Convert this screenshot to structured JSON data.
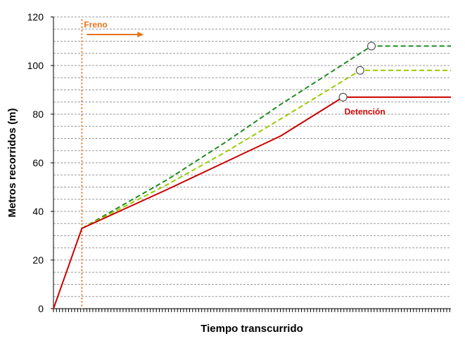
{
  "chart_data": {
    "type": "line",
    "title": "",
    "xlabel": "Tiempo transcurrido",
    "ylabel": "Metros recorridos (m)",
    "ylim": [
      0,
      120
    ],
    "xlim": [
      0,
      14
    ],
    "yticks": [
      0,
      20,
      40,
      60,
      80,
      100,
      120
    ],
    "grid": "horizontal dashed",
    "legend": "none",
    "series": [
      {
        "color": "#CC0000",
        "style": "solid",
        "points": [
          [
            0,
            0
          ],
          [
            1,
            33
          ],
          [
            2.5,
            41
          ],
          [
            4,
            49
          ],
          [
            6,
            60
          ],
          [
            8,
            71
          ],
          [
            10.2,
            87
          ],
          [
            14,
            87
          ]
        ],
        "end_marker": [
          10.2,
          87
        ]
      },
      {
        "color": "#99CC00",
        "style": "dashed",
        "points": [
          [
            1,
            33
          ],
          [
            2.5,
            42
          ],
          [
            4,
            51
          ],
          [
            6,
            64
          ],
          [
            8,
            78
          ],
          [
            10.8,
            98
          ],
          [
            14,
            98
          ]
        ],
        "end_marker": [
          10.8,
          98
        ]
      },
      {
        "color": "#228B22",
        "style": "dashed",
        "points": [
          [
            1,
            33
          ],
          [
            2.5,
            43
          ],
          [
            4,
            53
          ],
          [
            6,
            68
          ],
          [
            8,
            84
          ],
          [
            11.2,
            108
          ],
          [
            14,
            108
          ]
        ],
        "end_marker": [
          11.2,
          108
        ]
      }
    ],
    "annotations": [
      {
        "text": "Freno",
        "x": 1,
        "y": 116,
        "color": "#E8731A",
        "marker": "vertical-dotted-line-with-arrow"
      },
      {
        "text": "Detención",
        "x": 10.2,
        "y": 81,
        "color": "#CC0000"
      }
    ]
  },
  "colors": {
    "grid": "#9a9a9a",
    "freno": "#E8731A"
  }
}
